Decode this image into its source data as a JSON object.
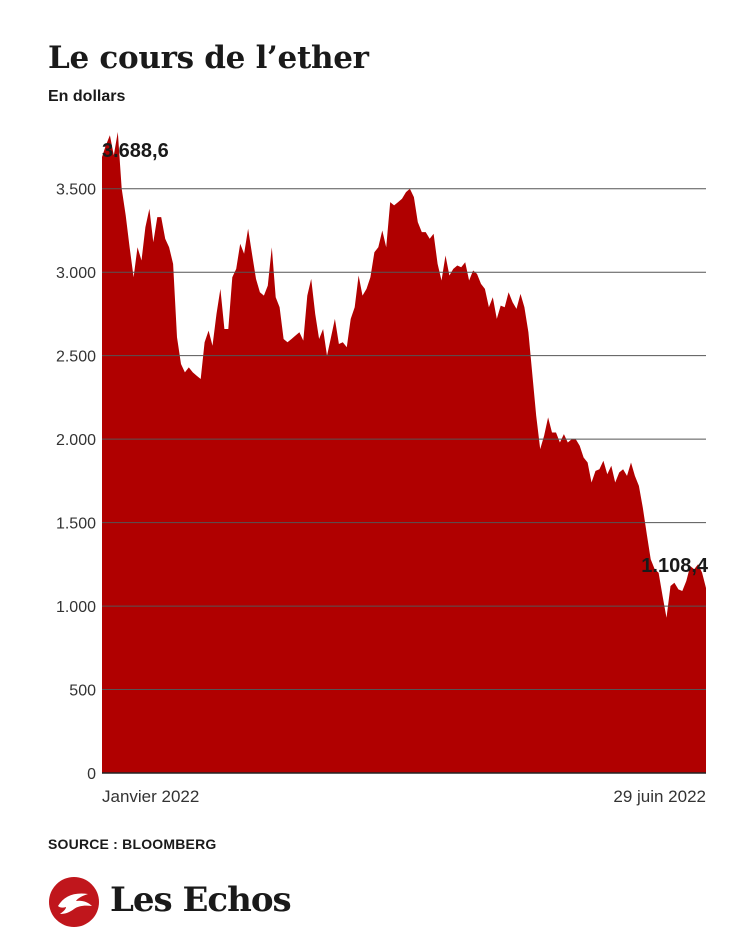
{
  "header": {
    "title": "Le cours de l’ether",
    "subtitle": "En dollars"
  },
  "footer": {
    "source": "SOURCE : BLOOMBERG",
    "brand": "Les Echos"
  },
  "colors": {
    "area_fill": "#b00000",
    "gridline": "#555555",
    "logo_red": "#c0161c"
  },
  "chart_data": {
    "type": "area",
    "title": "Le cours de l’ether",
    "subtitle": "En dollars",
    "xlabel": "",
    "ylabel": "",
    "ylim": [
      0,
      3750
    ],
    "yticks": [
      0,
      500,
      1000,
      1500,
      2000,
      2500,
      3000,
      3500
    ],
    "ytick_labels": [
      "0",
      "500",
      "1.000",
      "1.500",
      "2.000",
      "2.500",
      "3.000",
      "3.500"
    ],
    "xtick_labels": [
      "Janvier 2022",
      "29 juin 2022"
    ],
    "grid": true,
    "annotations": [
      {
        "text": "3.688,6",
        "at": "start"
      },
      {
        "text": "1.108,4",
        "at": "end"
      }
    ],
    "series": [
      {
        "values": [
          3690,
          3760,
          3820,
          3700,
          3840,
          3500,
          3340,
          3150,
          2970,
          3150,
          3070,
          3270,
          3380,
          3180,
          3330,
          3330,
          3200,
          3150,
          3050,
          2610,
          2450,
          2400,
          2430,
          2400,
          2380,
          2360,
          2580,
          2650,
          2560,
          2750,
          2900,
          2660,
          2660,
          2970,
          3020,
          3170,
          3110,
          3260,
          3110,
          2960,
          2880,
          2860,
          2920,
          3150,
          2850,
          2790,
          2600,
          2580,
          2600,
          2620,
          2640,
          2590,
          2860,
          2960,
          2750,
          2600,
          2660,
          2500,
          2610,
          2720,
          2570,
          2580,
          2550,
          2720,
          2790,
          2980,
          2860,
          2900,
          2970,
          3120,
          3150,
          3250,
          3150,
          3420,
          3400,
          3420,
          3440,
          3480,
          3500,
          3450,
          3300,
          3240,
          3240,
          3200,
          3230,
          3050,
          2950,
          3100,
          2980,
          3020,
          3040,
          3030,
          3060,
          2950,
          3010,
          2990,
          2930,
          2900,
          2790,
          2850,
          2720,
          2800,
          2790,
          2880,
          2820,
          2780,
          2870,
          2790,
          2640,
          2390,
          2140,
          1940,
          2020,
          2130,
          2040,
          2040,
          1980,
          2030,
          1980,
          2000,
          2000,
          1960,
          1890,
          1860,
          1740,
          1810,
          1820,
          1870,
          1790,
          1840,
          1740,
          1800,
          1820,
          1780,
          1860,
          1780,
          1720,
          1590,
          1430,
          1280,
          1220,
          1200,
          1060,
          930,
          1120,
          1140,
          1100,
          1090,
          1150,
          1240,
          1220,
          1250,
          1200,
          1108
        ]
      }
    ]
  }
}
